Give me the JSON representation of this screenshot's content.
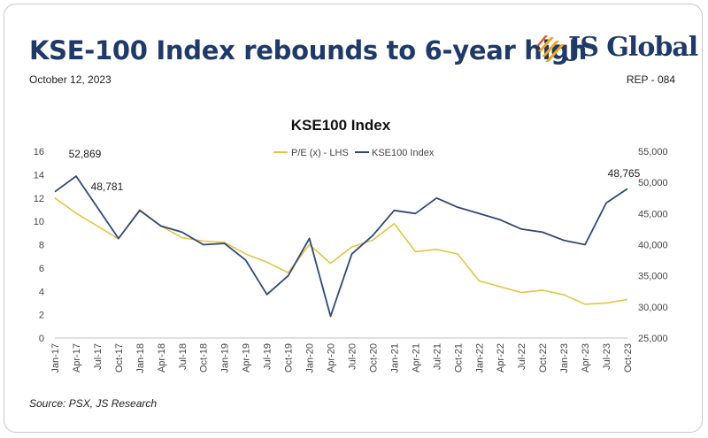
{
  "header": {
    "headline": "KSE-100 Index rebounds to 6-year high",
    "date": "October 12, 2023",
    "report_id": "REP - 084",
    "logo_text": "JS Global"
  },
  "footer": {
    "source": "Source: PSX, JS Research"
  },
  "colors": {
    "headline": "#1f3a68",
    "kse_line": "#2e4a78",
    "pe_line": "#e6c441"
  },
  "chart_data": {
    "type": "line",
    "title": "KSE100 Index",
    "x": [
      "Jan-17",
      "Apr-17",
      "Jul-17",
      "Oct-17",
      "Jan-18",
      "Apr-18",
      "Jul-18",
      "Oct-18",
      "Jan-19",
      "Apr-19",
      "Jul-19",
      "Oct-19",
      "Jan-20",
      "Apr-20",
      "Jul-20",
      "Oct-20",
      "Jan-21",
      "Apr-21",
      "Jul-21",
      "Oct-21",
      "Jan-22",
      "Apr-22",
      "Jul-22",
      "Oct-22",
      "Jan-23",
      "Apr-23",
      "Jul-23",
      "Oct-23"
    ],
    "y_left": {
      "min": 0,
      "max": 16,
      "ticks": [
        "0",
        "2",
        "4",
        "6",
        "8",
        "10",
        "12",
        "14",
        "16"
      ]
    },
    "y_right": {
      "min": 25000,
      "max": 55000,
      "ticks": [
        "25,000",
        "30,000",
        "35,000",
        "40,000",
        "45,000",
        "50,000",
        "55,000"
      ]
    },
    "series": [
      {
        "name": "P/E (x) - LHS",
        "axis": "left",
        "values": [
          12.0,
          10.7,
          9.6,
          8.5,
          11.0,
          9.6,
          8.6,
          8.3,
          8.2,
          7.2,
          6.5,
          5.6,
          8.0,
          6.4,
          7.8,
          8.4,
          9.8,
          7.4,
          7.6,
          7.2,
          4.9,
          4.4,
          3.9,
          4.1,
          3.7,
          2.9,
          3.0,
          3.3
        ]
      },
      {
        "name": "KSE100 Index",
        "axis": "right",
        "values": [
          48500,
          51000,
          46000,
          41000,
          45500,
          43000,
          42000,
          40000,
          40200,
          37500,
          32000,
          35000,
          41000,
          28500,
          38500,
          41500,
          45500,
          45000,
          47500,
          46000,
          45000,
          44000,
          42500,
          42000,
          40700,
          40000,
          46700,
          49000
        ]
      }
    ],
    "annotations": [
      "52,869",
      "48,781",
      "48,765"
    ],
    "grid": false,
    "legend": "top-center"
  }
}
